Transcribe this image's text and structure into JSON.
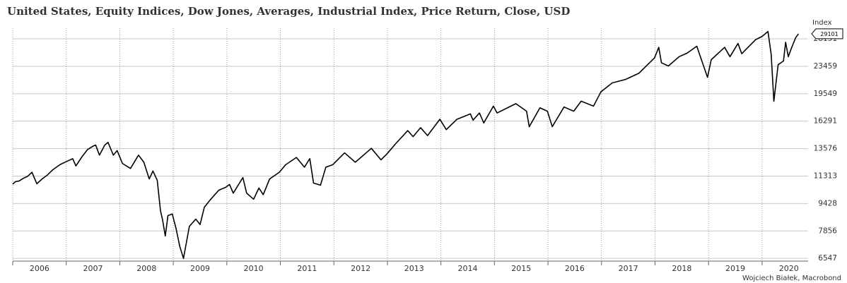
{
  "chart_data": {
    "type": "line",
    "title": "United States, Equity Indices, Dow Jones, Averages, Industrial Index, Price Return, Close, USD",
    "y_axis_label": "Index",
    "source": "Wojciech Białek, Macrobond",
    "log_scale": true,
    "grid": true,
    "xlim": [
      2006,
      2020.86
    ],
    "xticks": [
      2006,
      2007,
      2008,
      2009,
      2010,
      2011,
      2012,
      2013,
      2014,
      2015,
      2016,
      2017,
      2018,
      2019,
      2020
    ],
    "ylim": [
      6430,
      30200
    ],
    "yticks": [
      6547,
      7856,
      9428,
      11313,
      13576,
      16291,
      19549,
      23459,
      28151
    ],
    "x": [
      2006.0,
      2006.05,
      2006.12,
      2006.2,
      2006.28,
      2006.36,
      2006.45,
      2006.55,
      2006.65,
      2006.75,
      2006.88,
      2007.0,
      2007.12,
      2007.18,
      2007.3,
      2007.4,
      2007.5,
      2007.55,
      2007.62,
      2007.72,
      2007.78,
      2007.88,
      2007.95,
      2008.05,
      2008.2,
      2008.35,
      2008.45,
      2008.55,
      2008.62,
      2008.7,
      2008.76,
      2008.8,
      2008.85,
      2008.9,
      2008.98,
      2009.05,
      2009.12,
      2009.19,
      2009.3,
      2009.42,
      2009.5,
      2009.58,
      2009.7,
      2009.85,
      2009.98,
      2010.05,
      2010.12,
      2010.3,
      2010.37,
      2010.5,
      2010.6,
      2010.68,
      2010.8,
      2010.98,
      2011.1,
      2011.3,
      2011.45,
      2011.55,
      2011.62,
      2011.75,
      2011.85,
      2011.98,
      2012.2,
      2012.4,
      2012.7,
      2012.88,
      2012.99,
      2013.15,
      2013.38,
      2013.48,
      2013.62,
      2013.75,
      2013.98,
      2014.1,
      2014.3,
      2014.55,
      2014.6,
      2014.72,
      2014.8,
      2014.98,
      2015.05,
      2015.4,
      2015.6,
      2015.65,
      2015.85,
      2015.99,
      2016.08,
      2016.3,
      2016.48,
      2016.62,
      2016.85,
      2016.99,
      2017.2,
      2017.45,
      2017.7,
      2017.99,
      2018.07,
      2018.12,
      2018.25,
      2018.45,
      2018.6,
      2018.78,
      2018.98,
      2019.05,
      2019.3,
      2019.4,
      2019.55,
      2019.62,
      2019.88,
      2020.0,
      2020.11,
      2020.17,
      2020.22,
      2020.3,
      2020.4,
      2020.44,
      2020.49,
      2020.55,
      2020.63,
      2020.68
    ],
    "series": [
      {
        "name": "Dow Jones Industrial Index",
        "color": "#000000",
        "values": [
          10720,
          10900,
          10950,
          11150,
          11300,
          11600,
          10750,
          11100,
          11400,
          11800,
          12200,
          12450,
          12700,
          12100,
          12900,
          13500,
          13800,
          13900,
          13000,
          13900,
          14150,
          13000,
          13400,
          12300,
          11900,
          13000,
          12400,
          11100,
          11700,
          11000,
          9000,
          8450,
          7600,
          8700,
          8800,
          8000,
          7100,
          6547,
          8100,
          8500,
          8200,
          9200,
          9700,
          10300,
          10500,
          10700,
          10100,
          11200,
          10100,
          9700,
          10450,
          10000,
          11100,
          11600,
          12200,
          12800,
          12000,
          12700,
          10800,
          10650,
          12000,
          12200,
          13200,
          12400,
          13600,
          12600,
          13100,
          14000,
          15300,
          14700,
          15600,
          14800,
          16500,
          15400,
          16500,
          17100,
          16400,
          17200,
          16100,
          18000,
          17200,
          18300,
          17400,
          15700,
          17800,
          17400,
          15700,
          17900,
          17400,
          18600,
          18000,
          19800,
          21000,
          21500,
          22400,
          24800,
          26600,
          24000,
          23500,
          25000,
          25600,
          26800,
          21800,
          24500,
          26600,
          25000,
          27300,
          25500,
          28000,
          28600,
          29550,
          25400,
          18600,
          23700,
          24300,
          27500,
          25000,
          26500,
          28400,
          29101
        ]
      }
    ]
  }
}
